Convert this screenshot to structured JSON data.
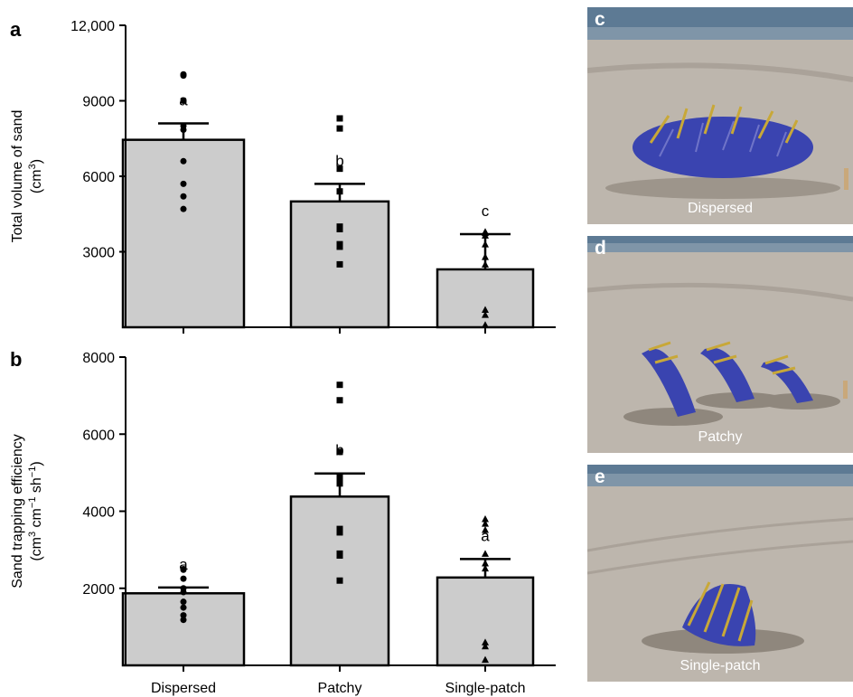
{
  "chart_data": [
    {
      "panel": "a",
      "type": "bar",
      "categories": [
        "Dispersed",
        "Patchy",
        "Single-patch"
      ],
      "values": [
        7450,
        5000,
        2300
      ],
      "errors": [
        650,
        700,
        1400
      ],
      "significance": [
        "a",
        "b",
        "c"
      ],
      "ylabel_lines": [
        "Total volume of sand",
        "(cm3)"
      ],
      "yticks": [
        3000,
        6000,
        9000,
        12000
      ],
      "ytick_labels": [
        "3000",
        "6000",
        "9000",
        "12,000"
      ],
      "ylim": [
        0,
        12000
      ],
      "points": [
        [
          10050,
          10000,
          9000,
          8000,
          7850,
          6600,
          5700,
          5200,
          4700
        ],
        [
          8300,
          7900,
          6300,
          5400,
          4000,
          3900,
          3300,
          3200,
          2500
        ],
        [
          3800,
          3750,
          3650,
          3300,
          2800,
          2500,
          700,
          500,
          100
        ]
      ],
      "markers": [
        "circle",
        "square",
        "triangle"
      ]
    },
    {
      "panel": "b",
      "type": "bar",
      "categories": [
        "Dispersed",
        "Patchy",
        "Single-patch"
      ],
      "values": [
        1870,
        4380,
        2280
      ],
      "errors": [
        150,
        600,
        480
      ],
      "significance": [
        "a",
        "b",
        "a"
      ],
      "ylabel_lines": [
        "Sand trapping efficiency",
        "(cm3 cm−1 sh−1)"
      ],
      "yticks": [
        2000,
        4000,
        6000,
        8000
      ],
      "ytick_labels": [
        "2000",
        "4000",
        "6000",
        "8000"
      ],
      "ylim": [
        0,
        8000
      ],
      "points": [
        [
          2500,
          2480,
          2250,
          2000,
          1900,
          1650,
          1500,
          1300,
          1180
        ],
        [
          7280,
          6880,
          5540,
          4880,
          4720,
          3540,
          3450,
          2900,
          2850,
          2200
        ],
        [
          3800,
          3680,
          3520,
          2900,
          2650,
          2520,
          600,
          500,
          150
        ]
      ],
      "markers": [
        "circle",
        "square",
        "triangle"
      ]
    }
  ],
  "photos": [
    {
      "letter": "c",
      "caption": "Dispersed"
    },
    {
      "letter": "d",
      "caption": "Patchy"
    },
    {
      "letter": "e",
      "caption": "Single-patch"
    }
  ],
  "colors": {
    "bar_fill": "#cccccc",
    "bar_stroke": "#000000",
    "marker": "#000000",
    "sky": "#5d7a94",
    "sea": "#7f95a8",
    "sand": "#bdb6ad",
    "grass_blue": "#3a44b0",
    "grass_yellow": "#c8a838"
  }
}
